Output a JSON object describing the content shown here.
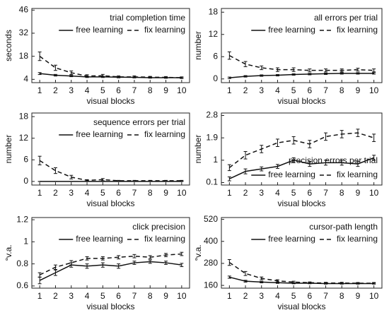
{
  "chart_data": [
    {
      "type": "line",
      "title": "trial completion time",
      "y_label": "seconds",
      "x_label": "visual blocks",
      "x": [
        1,
        2,
        3,
        4,
        5,
        6,
        7,
        8,
        9,
        10
      ],
      "xlim": [
        0.5,
        10.5
      ],
      "xticks": [
        1,
        2,
        3,
        4,
        5,
        6,
        7,
        8,
        9,
        10
      ],
      "ylim": [
        2,
        47
      ],
      "yticks": [
        4,
        18,
        32,
        46
      ],
      "grid": false,
      "legend": "upper right",
      "series": [
        {
          "name": "free learning",
          "color": "#111111",
          "line_style": "solid",
          "values": [
            7.5,
            6.5,
            6.0,
            5.5,
            5.5,
            5.3,
            5.2,
            5.0,
            5.0,
            5.0
          ],
          "errors": [
            0.6,
            0.5,
            0.4,
            0.4,
            0.4,
            0.3,
            0.3,
            0.3,
            0.3,
            0.3
          ]
        },
        {
          "name": "fix learning",
          "color": "#111111",
          "line_style": "dashed",
          "values": [
            18,
            11,
            8,
            6,
            6.2,
            5.5,
            5.5,
            5.3,
            5.2,
            5.0
          ],
          "errors": [
            2.6,
            1.6,
            1.1,
            0.8,
            0.8,
            0.6,
            0.6,
            0.5,
            0.5,
            0.5
          ]
        }
      ]
    },
    {
      "type": "line",
      "title": "all errors per trial",
      "y_label": "number",
      "x_label": "visual blocks",
      "x": [
        1,
        2,
        3,
        4,
        5,
        6,
        7,
        8,
        9,
        10
      ],
      "xlim": [
        0.5,
        10.5
      ],
      "xticks": [
        1,
        2,
        3,
        4,
        5,
        6,
        7,
        8,
        9,
        10
      ],
      "ylim": [
        -1,
        19
      ],
      "yticks": [
        0,
        6,
        12,
        18
      ],
      "grid": false,
      "legend": "upper right",
      "series": [
        {
          "name": "free learning",
          "color": "#111111",
          "line_style": "solid",
          "values": [
            0.3,
            0.7,
            0.9,
            1.0,
            1.2,
            1.3,
            1.4,
            1.5,
            1.5,
            1.5
          ],
          "errors": [
            0.2,
            0.2,
            0.2,
            0.2,
            0.2,
            0.2,
            0.2,
            0.2,
            0.2,
            0.2
          ]
        },
        {
          "name": "fix learning",
          "color": "#111111",
          "line_style": "dashed",
          "values": [
            6.3,
            4.0,
            3.0,
            2.5,
            2.5,
            2.3,
            2.3,
            2.3,
            2.5,
            2.3
          ],
          "errors": [
            1.0,
            0.7,
            0.5,
            0.5,
            0.5,
            0.4,
            0.4,
            0.4,
            0.4,
            0.4
          ]
        }
      ]
    },
    {
      "type": "line",
      "title": "sequence errors per trial",
      "y_label": "number",
      "x_label": "visual blocks",
      "x": [
        1,
        2,
        3,
        4,
        5,
        6,
        7,
        8,
        9,
        10
      ],
      "xlim": [
        0.5,
        10.5
      ],
      "xticks": [
        1,
        2,
        3,
        4,
        5,
        6,
        7,
        8,
        9,
        10
      ],
      "ylim": [
        -1,
        19
      ],
      "yticks": [
        0,
        6,
        12,
        18
      ],
      "grid": false,
      "legend": "upper right",
      "series": [
        {
          "name": "free learning",
          "color": "#111111",
          "line_style": "solid",
          "values": [
            0,
            0,
            0,
            0,
            0,
            0,
            0,
            0,
            0,
            0
          ],
          "errors": [
            0,
            0,
            0,
            0,
            0,
            0,
            0,
            0,
            0,
            0
          ]
        },
        {
          "name": "fix learning",
          "color": "#111111",
          "line_style": "dashed",
          "values": [
            5.8,
            3.0,
            1.2,
            0.3,
            0.5,
            0.2,
            0.2,
            0.2,
            0.2,
            0.2
          ],
          "errors": [
            1.2,
            0.8,
            0.5,
            0.2,
            0.3,
            0.1,
            0.1,
            0.1,
            0.1,
            0.1
          ]
        }
      ]
    },
    {
      "type": "line",
      "title": "precision errors per trial",
      "y_label": "number",
      "x_label": "visual blocks",
      "x": [
        1,
        2,
        3,
        4,
        5,
        6,
        7,
        8,
        9,
        10
      ],
      "xlim": [
        0.5,
        10.5
      ],
      "xticks": [
        1,
        2,
        3,
        4,
        5,
        6,
        7,
        8,
        9,
        10
      ],
      "ylim": [
        0,
        2.9
      ],
      "yticks": [
        0.1,
        1.0,
        1.9,
        2.8
      ],
      "grid": false,
      "legend": "lower right",
      "series": [
        {
          "name": "free learning",
          "color": "#111111",
          "line_style": "solid",
          "values": [
            0.25,
            0.55,
            0.65,
            0.75,
            1.0,
            0.85,
            0.9,
            0.9,
            0.85,
            1.1
          ],
          "errors": [
            0.08,
            0.1,
            0.08,
            0.08,
            0.1,
            0.1,
            0.1,
            0.1,
            0.1,
            0.1
          ]
        },
        {
          "name": "fix learning",
          "color": "#111111",
          "line_style": "dashed",
          "values": [
            0.7,
            1.2,
            1.45,
            1.7,
            1.8,
            1.65,
            1.95,
            2.05,
            2.1,
            1.9
          ],
          "errors": [
            0.12,
            0.15,
            0.15,
            0.15,
            0.15,
            0.15,
            0.15,
            0.15,
            0.15,
            0.15
          ]
        }
      ]
    },
    {
      "type": "line",
      "title": "click precision",
      "y_label": "°v.a.",
      "x_label": "visual blocks",
      "x": [
        1,
        2,
        3,
        4,
        5,
        6,
        7,
        8,
        9,
        10
      ],
      "xlim": [
        0.5,
        10.5
      ],
      "xticks": [
        1,
        2,
        3,
        4,
        5,
        6,
        7,
        8,
        9,
        10
      ],
      "ylim": [
        0.58,
        1.22
      ],
      "yticks": [
        0.6,
        0.8,
        1.0,
        1.2
      ],
      "grid": false,
      "legend": "upper right",
      "series": [
        {
          "name": "free learning",
          "color": "#111111",
          "line_style": "solid",
          "values": [
            0.65,
            0.72,
            0.79,
            0.78,
            0.79,
            0.78,
            0.81,
            0.82,
            0.81,
            0.79
          ],
          "errors": [
            0.03,
            0.025,
            0.02,
            0.02,
            0.02,
            0.02,
            0.015,
            0.015,
            0.015,
            0.015
          ]
        },
        {
          "name": "fix learning",
          "color": "#111111",
          "line_style": "dashed",
          "values": [
            0.7,
            0.77,
            0.81,
            0.85,
            0.85,
            0.86,
            0.87,
            0.86,
            0.88,
            0.89
          ],
          "errors": [
            0.02,
            0.02,
            0.02,
            0.015,
            0.015,
            0.015,
            0.015,
            0.015,
            0.015,
            0.015
          ]
        }
      ]
    },
    {
      "type": "line",
      "title": "cursor-path length",
      "y_label": "°v.a.",
      "x_label": "visual blocks",
      "x": [
        1,
        2,
        3,
        4,
        5,
        6,
        7,
        8,
        9,
        10
      ],
      "xlim": [
        0.5,
        10.5
      ],
      "xticks": [
        1,
        2,
        3,
        4,
        5,
        6,
        7,
        8,
        9,
        10
      ],
      "ylim": [
        145,
        530
      ],
      "yticks": [
        160,
        280,
        400,
        520
      ],
      "grid": false,
      "legend": "upper right",
      "series": [
        {
          "name": "free learning",
          "color": "#111111",
          "line_style": "solid",
          "values": [
            205,
            183,
            178,
            175,
            172,
            172,
            170,
            170,
            170,
            170
          ],
          "errors": [
            6,
            5,
            4,
            4,
            3,
            3,
            3,
            3,
            3,
            3
          ]
        },
        {
          "name": "fix learning",
          "color": "#111111",
          "line_style": "dashed",
          "values": [
            285,
            225,
            198,
            185,
            178,
            175,
            173,
            173,
            172,
            172
          ],
          "errors": [
            16,
            11,
            8,
            6,
            5,
            4,
            4,
            4,
            4,
            4
          ]
        }
      ]
    }
  ]
}
